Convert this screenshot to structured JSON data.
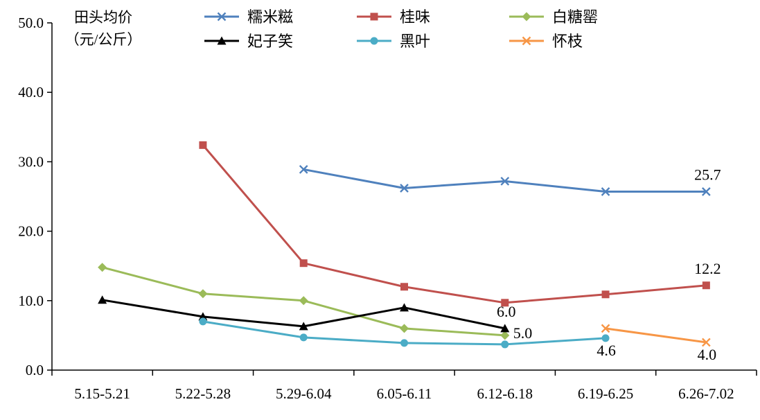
{
  "chart_data": {
    "type": "line",
    "title": "",
    "xlabel": "",
    "ylabel": [
      "田头均价",
      "（元/公斤）"
    ],
    "ylim": [
      0,
      50
    ],
    "yticks": [
      "0.0",
      "10.0",
      "20.0",
      "30.0",
      "40.0",
      "50.0"
    ],
    "grid": false,
    "legend": "top",
    "categories": [
      "5.15-5.21",
      "5.22-5.28",
      "5.29-6.04",
      "6.05-6.11",
      "6.12-6.18",
      "6.19-6.25",
      "6.26-7.02"
    ],
    "series": [
      {
        "name": "糯米糍",
        "color": "#4f81bd",
        "marker": "x",
        "values": [
          null,
          null,
          28.9,
          26.2,
          27.2,
          25.7,
          25.7
        ]
      },
      {
        "name": "桂味",
        "color": "#c0504d",
        "marker": "square",
        "values": [
          null,
          32.4,
          15.4,
          12.0,
          9.7,
          10.9,
          12.2
        ]
      },
      {
        "name": "白糖罂",
        "color": "#9bbb59",
        "marker": "diamond",
        "values": [
          14.8,
          11.0,
          10.0,
          6.0,
          5.0,
          null,
          null
        ]
      },
      {
        "name": "妃子笑",
        "color": "#000000",
        "marker": "triangle",
        "values": [
          10.1,
          7.7,
          6.3,
          9.0,
          6.0,
          null,
          null
        ]
      },
      {
        "name": "黑叶",
        "color": "#4bacc6",
        "marker": "circle",
        "values": [
          null,
          7.0,
          4.7,
          3.9,
          3.7,
          4.6,
          null
        ]
      },
      {
        "name": "怀枝",
        "color": "#f79646",
        "marker": "x",
        "values": [
          null,
          null,
          null,
          null,
          null,
          6.0,
          4.0
        ]
      }
    ],
    "data_labels": [
      {
        "text": "25.7",
        "series": 0,
        "category": 6,
        "position": "above"
      },
      {
        "text": "12.2",
        "series": 1,
        "category": 6,
        "position": "above"
      },
      {
        "text": "6.0",
        "series": 3,
        "category": 4,
        "position": "above"
      },
      {
        "text": "5.0",
        "series": 2,
        "category": 4,
        "position": "right"
      },
      {
        "text": "4.6",
        "series": 4,
        "category": 5,
        "position": "below"
      },
      {
        "text": "4.0",
        "series": 5,
        "category": 6,
        "position": "below"
      }
    ]
  }
}
